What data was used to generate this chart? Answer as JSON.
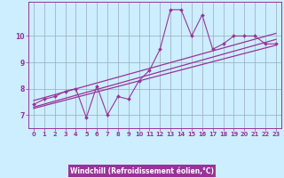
{
  "xlabel": "Windchill (Refroidissement éolien,°C)",
  "bg_color": "#cceeff",
  "line_color": "#993399",
  "grid_color": "#99aabb",
  "xlabel_bg": "#993399",
  "xlabel_fg": "#ffffff",
  "xmin": -0.5,
  "xmax": 23.5,
  "ymin": 6.5,
  "ymax": 11.3,
  "yticks": [
    7,
    8,
    9,
    10
  ],
  "xticks": [
    0,
    1,
    2,
    3,
    4,
    5,
    6,
    7,
    8,
    9,
    10,
    11,
    12,
    13,
    14,
    15,
    16,
    17,
    18,
    19,
    20,
    21,
    22,
    23
  ],
  "data_x": [
    0,
    1,
    2,
    3,
    4,
    5,
    6,
    7,
    8,
    9,
    10,
    11,
    12,
    13,
    14,
    15,
    16,
    17,
    18,
    19,
    20,
    21,
    22,
    23
  ],
  "data_y": [
    7.4,
    7.6,
    7.7,
    7.9,
    8.0,
    6.9,
    8.1,
    7.0,
    7.7,
    7.6,
    8.3,
    8.7,
    9.5,
    11.0,
    11.0,
    10.0,
    10.8,
    9.5,
    9.7,
    10.0,
    10.0,
    10.0,
    9.7,
    9.7
  ],
  "reg_x0": 0,
  "reg_x1": 23,
  "reg1_y0": 7.3,
  "reg1_y1": 9.87,
  "reg2_y0": 7.55,
  "reg2_y1": 10.1,
  "reg3_y0": 7.25,
  "reg3_y1": 9.65
}
